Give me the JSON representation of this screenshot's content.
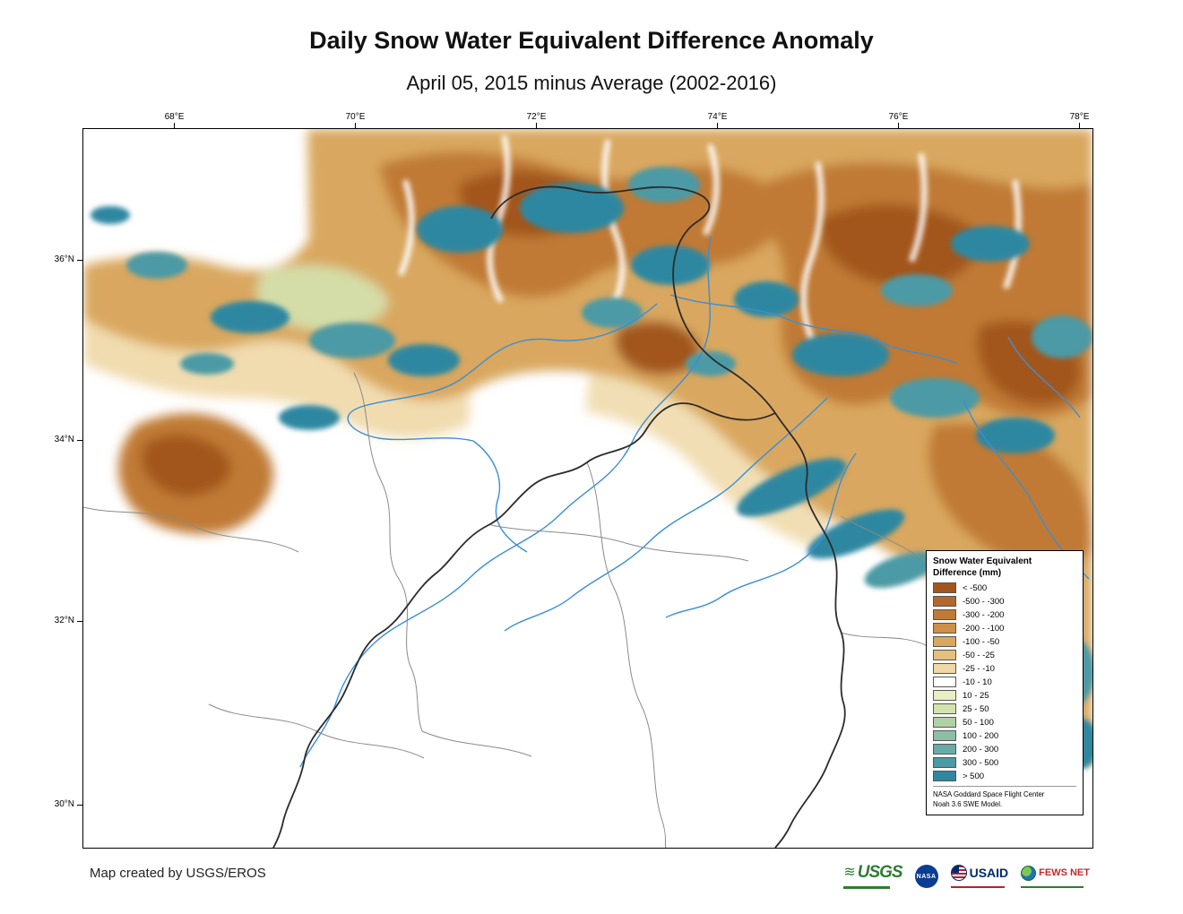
{
  "title": "Daily Snow Water Equivalent Difference Anomaly",
  "subtitle": "April 05, 2015 minus Average (2002-2016)",
  "map": {
    "x_tick_labels": [
      "68°E",
      "70°E",
      "72°E",
      "74°E",
      "76°E",
      "78°E"
    ],
    "y_tick_labels": [
      "36°N",
      "34°N",
      "32°N",
      "30°N"
    ]
  },
  "legend": {
    "title_line1": "Snow Water Equivalent",
    "title_line2": "Difference (mm)",
    "entries": [
      {
        "label": "< -500",
        "color": "#a3561c"
      },
      {
        "label": "-500 - -300",
        "color": "#b4682c"
      },
      {
        "label": "-300 - -200",
        "color": "#c07a35"
      },
      {
        "label": "-200 - -100",
        "color": "#cd9048"
      },
      {
        "label": "-100 - -50",
        "color": "#d9a75e"
      },
      {
        "label": "-50 - -25",
        "color": "#e4bf7d"
      },
      {
        "label": "-25 - -10",
        "color": "#efd8a7"
      },
      {
        "label": "-10 - 10",
        "color": "#ffffff"
      },
      {
        "label": "10 - 25",
        "color": "#e9efc3"
      },
      {
        "label": "25 - 50",
        "color": "#d3e3af"
      },
      {
        "label": "50 - 100",
        "color": "#b0d1a4"
      },
      {
        "label": "100 - 200",
        "color": "#8abfa5"
      },
      {
        "label": "200 - 300",
        "color": "#67aca6"
      },
      {
        "label": "300 - 500",
        "color": "#4b9aa5"
      },
      {
        "label": "> 500",
        "color": "#2f87a0"
      }
    ],
    "note_line1": "NASA Goddard Space Flight Center",
    "note_line2": "Noah 3.6 SWE Model."
  },
  "footer": {
    "credit": "Map created by USGS/EROS"
  },
  "logos": {
    "usgs": "USGS",
    "nasa": "NASA",
    "usaid": "USAID",
    "fews": "FEWS NET"
  }
}
